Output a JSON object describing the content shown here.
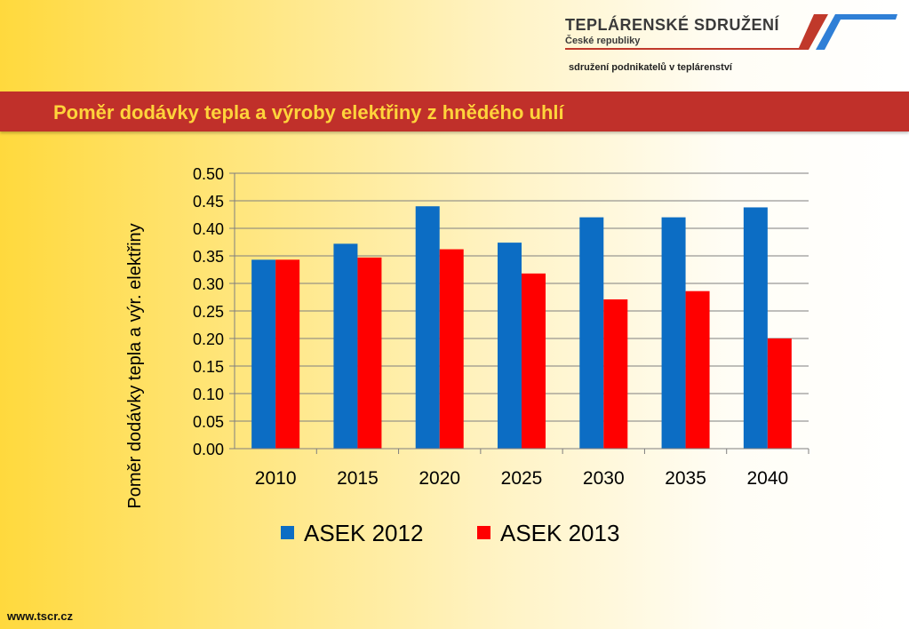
{
  "header": {
    "org_name": "TEPLÁRENSKÉ  SDRUŽENÍ",
    "org_sub": "České republiky",
    "tagline": "sdružení podnikatelů v teplárenství",
    "slide_title": "Poměr dodávky tepla a výroby elektřiny z hnědého uhlí"
  },
  "footer": {
    "url": "www.tscr.cz"
  },
  "chart_data": {
    "type": "bar",
    "title": "",
    "xlabel": "",
    "ylabel": "Poměr dodávky tepla a výr. elektřiny",
    "categories": [
      "2010",
      "2015",
      "2020",
      "2025",
      "2030",
      "2035",
      "2040"
    ],
    "ylim": [
      0,
      0.5
    ],
    "yticks": [
      "0.00",
      "0.05",
      "0.10",
      "0.15",
      "0.20",
      "0.25",
      "0.30",
      "0.35",
      "0.40",
      "0.45",
      "0.50"
    ],
    "grid": true,
    "legend_position": "bottom",
    "series": [
      {
        "name": "ASEK 2012",
        "color": "#0c6dc4",
        "values": [
          0.343,
          0.372,
          0.44,
          0.374,
          0.42,
          0.42,
          0.438
        ]
      },
      {
        "name": "ASEK 2013",
        "color": "#ff0000",
        "values": [
          0.343,
          0.347,
          0.362,
          0.318,
          0.271,
          0.286,
          0.2
        ]
      }
    ]
  }
}
